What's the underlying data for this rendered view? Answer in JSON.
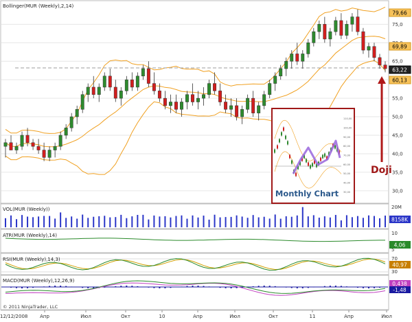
{
  "chart_data": {
    "type": "candlestick",
    "main": {
      "label": "Bollinger(MUR (Weekly),2,14)",
      "yticks": [
        30,
        35,
        40,
        45,
        50,
        55,
        60,
        65,
        70,
        75
      ],
      "ylim": [
        27,
        81
      ],
      "bollinger_badges": {
        "upper": "79,66",
        "middle": "69,89",
        "lower": "60,13"
      },
      "last_price": "63,22",
      "dashed_level": 63.2,
      "candles": [
        [
          42,
          44,
          39,
          43
        ],
        [
          43,
          45,
          41,
          41
        ],
        [
          41,
          43,
          40,
          42
        ],
        [
          42,
          46,
          41,
          45
        ],
        [
          45,
          47,
          42,
          43
        ],
        [
          43,
          44,
          41,
          42
        ],
        [
          42,
          44,
          40,
          41
        ],
        [
          41,
          43,
          38,
          39
        ],
        [
          39,
          42,
          38,
          41
        ],
        [
          41,
          43,
          39,
          42
        ],
        [
          42,
          46,
          41,
          45
        ],
        [
          45,
          48,
          44,
          47
        ],
        [
          47,
          51,
          46,
          50
        ],
        [
          50,
          53,
          48,
          52
        ],
        [
          52,
          57,
          51,
          56
        ],
        [
          56,
          59,
          54,
          58
        ],
        [
          58,
          61,
          55,
          56
        ],
        [
          56,
          59,
          54,
          58
        ],
        [
          58,
          62,
          57,
          61
        ],
        [
          61,
          63,
          57,
          58
        ],
        [
          58,
          60,
          54,
          55
        ],
        [
          55,
          58,
          53,
          57
        ],
        [
          57,
          61,
          56,
          60
        ],
        [
          60,
          62,
          57,
          58
        ],
        [
          58,
          62,
          57,
          61
        ],
        [
          61,
          64,
          60,
          63
        ],
        [
          63,
          65,
          58,
          59
        ],
        [
          59,
          62,
          56,
          57
        ],
        [
          57,
          59,
          54,
          55
        ],
        [
          55,
          57,
          52,
          53
        ],
        [
          53,
          56,
          51,
          54
        ],
        [
          54,
          56,
          51,
          52
        ],
        [
          52,
          55,
          50,
          54
        ],
        [
          54,
          57,
          52,
          56
        ],
        [
          56,
          59,
          53,
          54
        ],
        [
          54,
          57,
          52,
          55
        ],
        [
          55,
          58,
          53,
          56
        ],
        [
          56,
          60,
          55,
          59
        ],
        [
          59,
          62,
          56,
          57
        ],
        [
          57,
          59,
          53,
          54
        ],
        [
          54,
          56,
          51,
          52
        ],
        [
          52,
          55,
          50,
          53
        ],
        [
          53,
          55,
          49,
          50
        ],
        [
          50,
          53,
          48,
          52
        ],
        [
          52,
          56,
          51,
          55
        ],
        [
          55,
          57,
          50,
          51
        ],
        [
          51,
          54,
          49,
          53
        ],
        [
          53,
          57,
          52,
          56
        ],
        [
          56,
          60,
          55,
          59
        ],
        [
          59,
          62,
          57,
          61
        ],
        [
          61,
          64,
          60,
          63
        ],
        [
          63,
          66,
          61,
          65
        ],
        [
          65,
          68,
          63,
          67
        ],
        [
          67,
          70,
          64,
          65
        ],
        [
          65,
          68,
          63,
          67
        ],
        [
          67,
          71,
          66,
          70
        ],
        [
          70,
          74,
          69,
          73
        ],
        [
          73,
          76,
          71,
          75
        ],
        [
          75,
          77,
          70,
          71
        ],
        [
          71,
          74,
          69,
          73
        ],
        [
          73,
          77,
          72,
          76
        ],
        [
          76,
          78,
          71,
          72
        ],
        [
          72,
          76,
          71,
          75
        ],
        [
          75,
          78,
          73,
          77
        ],
        [
          77,
          79,
          72,
          73
        ],
        [
          73,
          74,
          67,
          68
        ],
        [
          68,
          70,
          66,
          69
        ],
        [
          69,
          70,
          65,
          66
        ],
        [
          66,
          67,
          63,
          64
        ],
        [
          64,
          65,
          62,
          63
        ]
      ],
      "annotation": {
        "text": "Doji",
        "color": "#a01818"
      },
      "inset": {
        "title": "Monthly Chart",
        "yticks": [
          30,
          40,
          50,
          60,
          70,
          80,
          90,
          100,
          110
        ]
      }
    },
    "volume": {
      "label": "VOL(MUR (Weekly))",
      "max_label": "20M",
      "last_value": "8158K"
    },
    "atr": {
      "label": "ATR(MUR (Weekly),14)",
      "yticks": [
        5,
        10
      ],
      "last_value": "4,06"
    },
    "rsi": {
      "label": "RSI(MUR (Weekly),14,3)",
      "yticks": [
        70,
        30
      ],
      "last_value": "40,97"
    },
    "macd": {
      "label": "MACD(MUR (Weekly),12,26,9)",
      "badge_values": [
        "0,438",
        "-1,48"
      ]
    },
    "xaxis": {
      "labels": [
        "12/12/2008",
        "Апр",
        "Июл",
        "Окт",
        "10",
        "Апр",
        "Июл",
        "Окт",
        "11",
        "Апр",
        "Июл"
      ]
    },
    "copyright": "© 2011 NinjaTrader, LLC",
    "colors": {
      "up": "#2e8b2e",
      "down": "#d21e1e",
      "band": "#f0a020",
      "volume": "#2a35c8",
      "atr": "#2a8a2a",
      "rsi": "#2a8a2a",
      "rsi_signal": "#d0a000",
      "macd": "#2a8a2a",
      "macd_signal": "#c040c0",
      "macd_hist": "#1a1aa0"
    }
  }
}
